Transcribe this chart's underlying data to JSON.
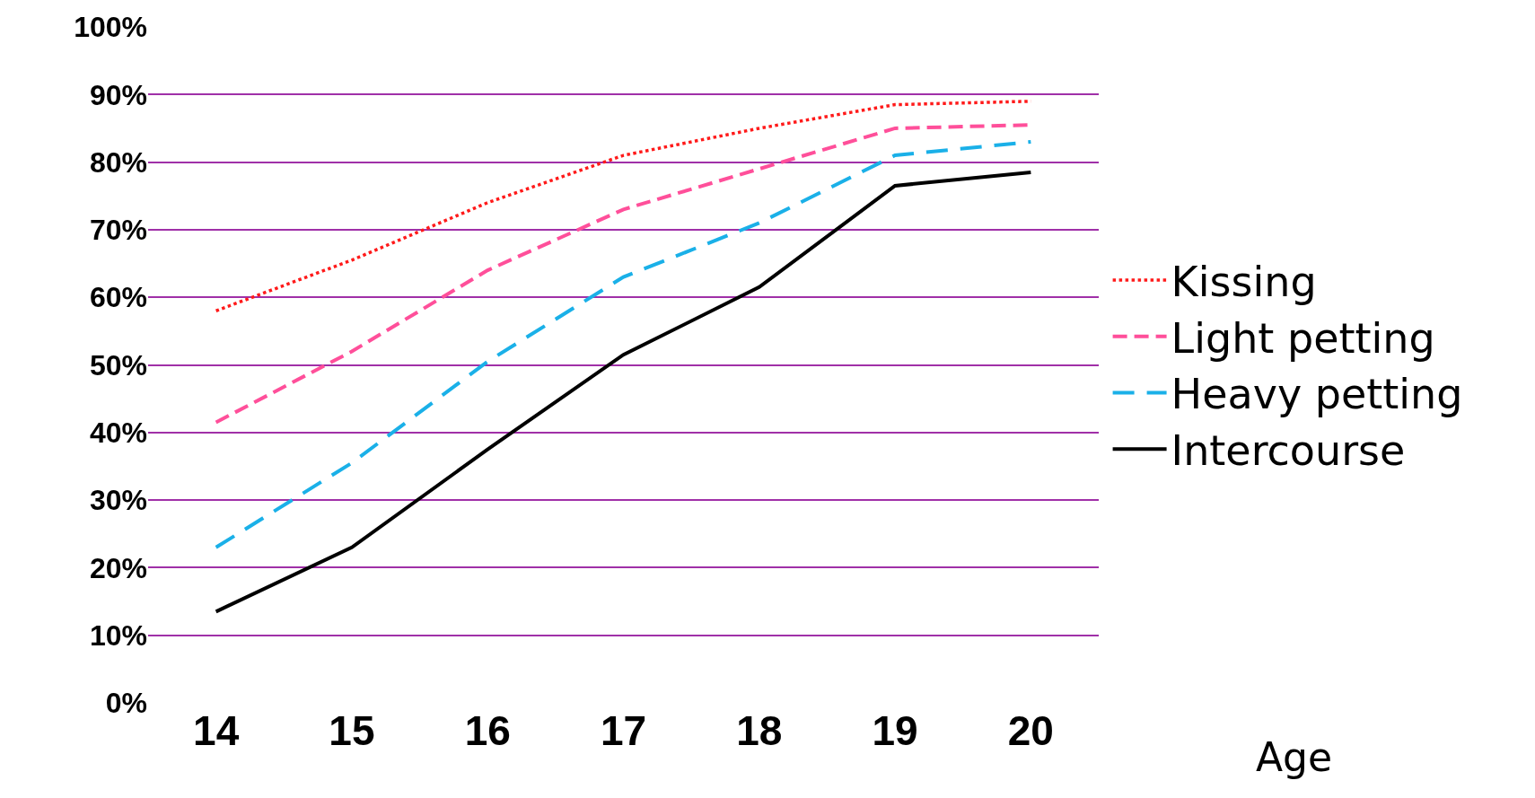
{
  "chart_data": {
    "type": "line",
    "xlabel": "Age",
    "categories": [
      "14",
      "15",
      "16",
      "17",
      "18",
      "19",
      "20"
    ],
    "series": [
      {
        "name": "Kissing",
        "color": "#ff1a1a",
        "line_style": "dotted",
        "values": [
          58,
          65.5,
          74,
          81,
          85,
          88.5,
          89
        ]
      },
      {
        "name": "Light petting",
        "color": "#ff4f9a",
        "line_style": "dashed",
        "values": [
          41.5,
          52,
          64,
          73,
          79,
          85,
          85.5
        ]
      },
      {
        "name": "Heavy petting",
        "color": "#1ab0e8",
        "line_style": "dashed",
        "values": [
          23,
          35.5,
          50.5,
          63,
          71,
          81,
          83
        ]
      },
      {
        "name": "Intercourse",
        "color": "#000000",
        "line_style": "solid",
        "values": [
          13.5,
          23,
          37.5,
          51.5,
          61.5,
          76.5,
          78.5
        ]
      }
    ],
    "ylim": [
      0,
      100
    ],
    "yticks": [
      {
        "value": 0,
        "label": "0%"
      },
      {
        "value": 10,
        "label": "10%"
      },
      {
        "value": 20,
        "label": "20%"
      },
      {
        "value": 30,
        "label": "30%"
      },
      {
        "value": 40,
        "label": "40%"
      },
      {
        "value": 50,
        "label": "50%"
      },
      {
        "value": 60,
        "label": "60%"
      },
      {
        "value": 70,
        "label": "70%"
      },
      {
        "value": 80,
        "label": "80%"
      },
      {
        "value": 90,
        "label": "90%"
      },
      {
        "value": 100,
        "label": "100%"
      }
    ],
    "grid": "y",
    "legend": "right",
    "marker": "none"
  }
}
